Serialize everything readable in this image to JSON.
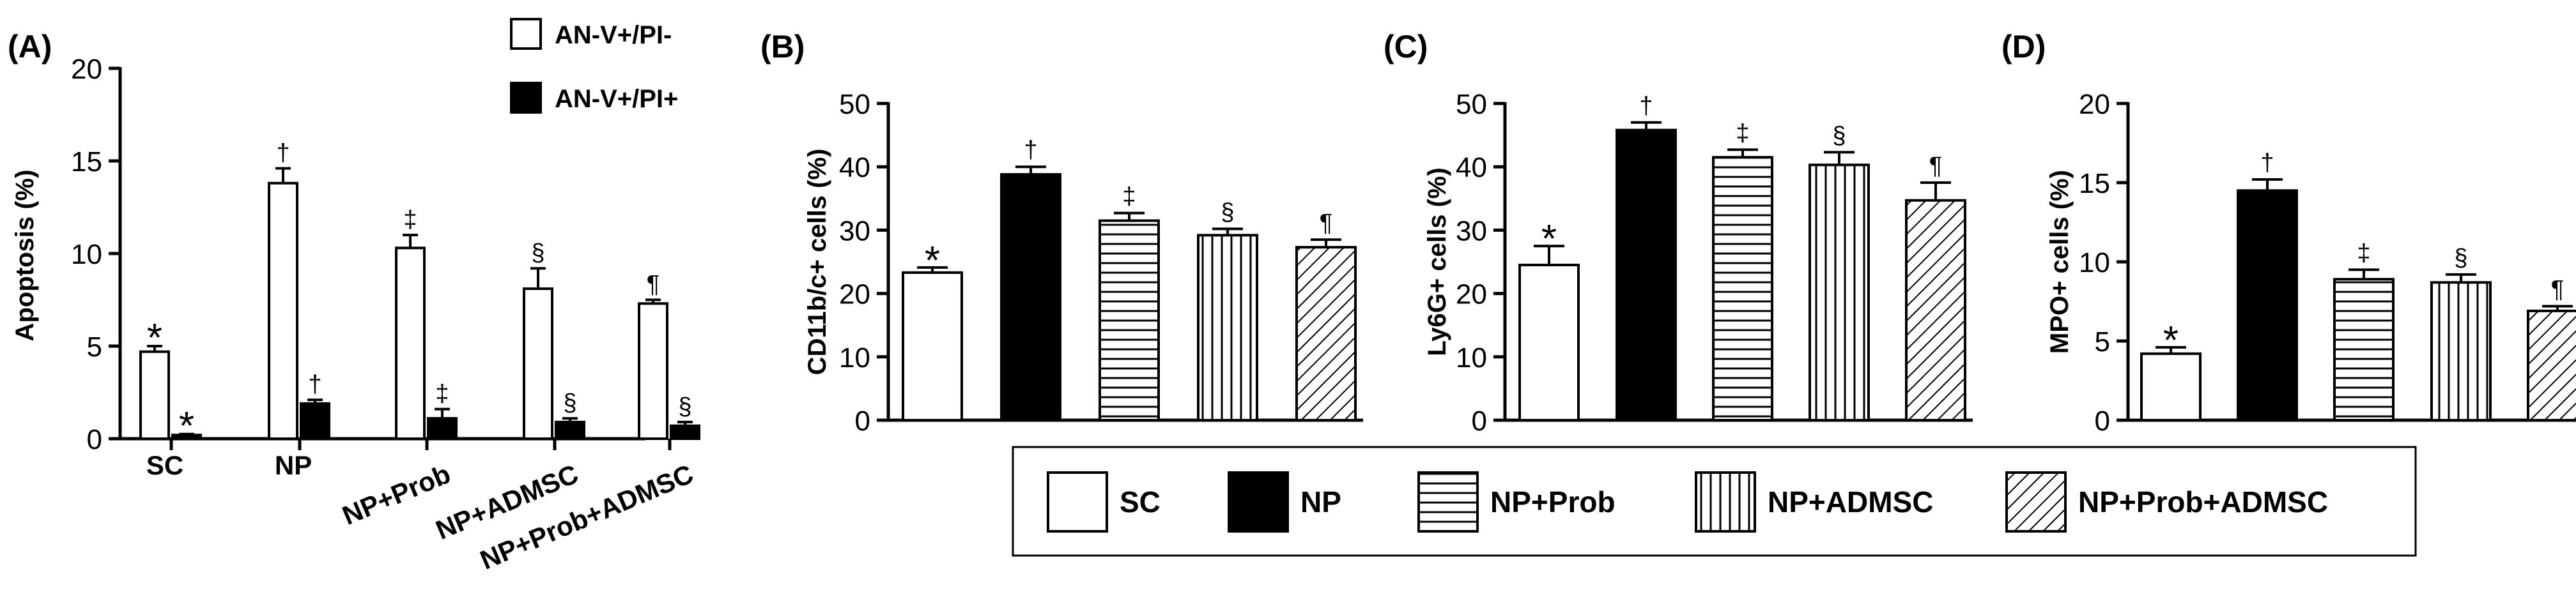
{
  "chart_data": [
    {
      "panel": "(A)",
      "type": "bar",
      "ylabel": "Apoptosis (%)",
      "ylim": [
        0,
        20
      ],
      "yticks": [
        "0",
        "5",
        "10",
        "15",
        "20"
      ],
      "categories": [
        "SC",
        "NP",
        "NP+Prob",
        "NP+ADMSC",
        "NP+Prob+ADMSC"
      ],
      "series": [
        {
          "name": "AN-V+/PI-",
          "fill": "white",
          "values": [
            4.7,
            13.8,
            10.3,
            8.1,
            7.3
          ],
          "errors": [
            0.3,
            0.8,
            0.7,
            1.1,
            0.2
          ],
          "marks": [
            "*",
            "†",
            "‡",
            "§",
            "¶"
          ]
        },
        {
          "name": "AN-V+/PI+",
          "fill": "black",
          "values": [
            0.2,
            1.9,
            1.1,
            0.9,
            0.7
          ],
          "errors": [
            0.05,
            0.2,
            0.5,
            0.2,
            0.2
          ],
          "marks": [
            "*",
            "†",
            "‡",
            "§",
            "§"
          ]
        }
      ],
      "legend_position": "top-right"
    },
    {
      "panel": "(B)",
      "type": "bar",
      "ylabel": "CD11b/c+ cells (%)",
      "ylim": [
        0,
        50
      ],
      "yticks": [
        "0",
        "10",
        "20",
        "30",
        "40",
        "50"
      ],
      "categories": [
        "SC",
        "NP",
        "NP+Prob",
        "NP+ADMSC",
        "NP+Prob+ADMSC"
      ],
      "values": [
        23.3,
        38.8,
        31.5,
        29.2,
        27.3
      ],
      "errors": [
        0.8,
        1.2,
        1.2,
        1.0,
        1.2
      ],
      "marks": [
        "*",
        "†",
        "‡",
        "§",
        "¶"
      ]
    },
    {
      "panel": "(C)",
      "type": "bar",
      "ylabel": "Ly6G+ cells (%)",
      "ylim": [
        0,
        50
      ],
      "yticks": [
        "0",
        "10",
        "20",
        "30",
        "40",
        "50"
      ],
      "categories": [
        "SC",
        "NP",
        "NP+Prob",
        "NP+ADMSC",
        "NP+Prob+ADMSC"
      ],
      "values": [
        24.5,
        45.8,
        41.5,
        40.3,
        34.7
      ],
      "errors": [
        3.0,
        1.2,
        1.2,
        2.0,
        2.8
      ],
      "marks": [
        "*",
        "†",
        "‡",
        "§",
        "¶"
      ]
    },
    {
      "panel": "(D)",
      "type": "bar",
      "ylabel": "MPO+ cells (%)",
      "ylim": [
        0,
        20
      ],
      "yticks": [
        "0",
        "5",
        "10",
        "15",
        "20"
      ],
      "categories": [
        "SC",
        "NP",
        "NP+Prob",
        "NP+ADMSC",
        "NP+Prob+ADMSC"
      ],
      "values": [
        4.2,
        14.5,
        8.9,
        8.7,
        6.9
      ],
      "errors": [
        0.4,
        0.7,
        0.6,
        0.5,
        0.3
      ],
      "marks": [
        "*",
        "†",
        "‡",
        "§",
        "¶"
      ]
    }
  ],
  "legend": {
    "items": [
      {
        "label": "SC",
        "fill": "white"
      },
      {
        "label": "NP",
        "fill": "black"
      },
      {
        "label": "NP+Prob",
        "fill": "hlines"
      },
      {
        "label": "NP+ADMSC",
        "fill": "vlines"
      },
      {
        "label": "NP+Prob+ADMSC",
        "fill": "diag"
      }
    ]
  }
}
